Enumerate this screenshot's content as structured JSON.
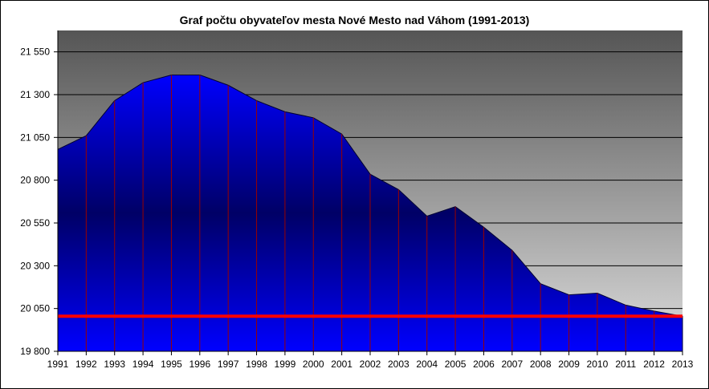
{
  "chart_data": {
    "type": "area",
    "title": "Graf počtu obyvateľov mesta Nové Mesto nad Váhom (1991-2013)",
    "xlabel": "",
    "ylabel": "",
    "ylim": [
      19800,
      21675
    ],
    "grid": true,
    "y_ticks": [
      19800,
      20050,
      20300,
      20550,
      20800,
      21050,
      21300,
      21550
    ],
    "y_tick_labels": [
      "19 800",
      "20 050",
      "20 300",
      "20 550",
      "20 800",
      "21 050",
      "21 300",
      "21 550"
    ],
    "categories": [
      "1991",
      "1992",
      "1993",
      "1994",
      "1995",
      "1996",
      "1997",
      "1998",
      "1999",
      "2000",
      "2001",
      "2002",
      "2003",
      "2004",
      "2005",
      "2006",
      "2007",
      "2008",
      "2009",
      "2010",
      "2011",
      "2012",
      "2013"
    ],
    "series": [
      {
        "values": [
          20980,
          21060,
          21265,
          21370,
          21415,
          21415,
          21355,
          21265,
          21200,
          21165,
          21070,
          20835,
          20745,
          20590,
          20645,
          20525,
          20390,
          20195,
          20130,
          20140,
          20070,
          20035,
          20005
        ]
      }
    ],
    "reference_line": {
      "value": 20005
    },
    "colors": {
      "area_top": "#000066",
      "area_bottom": "#0000ff",
      "reference_line": "#ff0000",
      "year_lines": "#990000",
      "bg_top": "#555555",
      "bg_bottom": "#dcdcdc"
    }
  }
}
